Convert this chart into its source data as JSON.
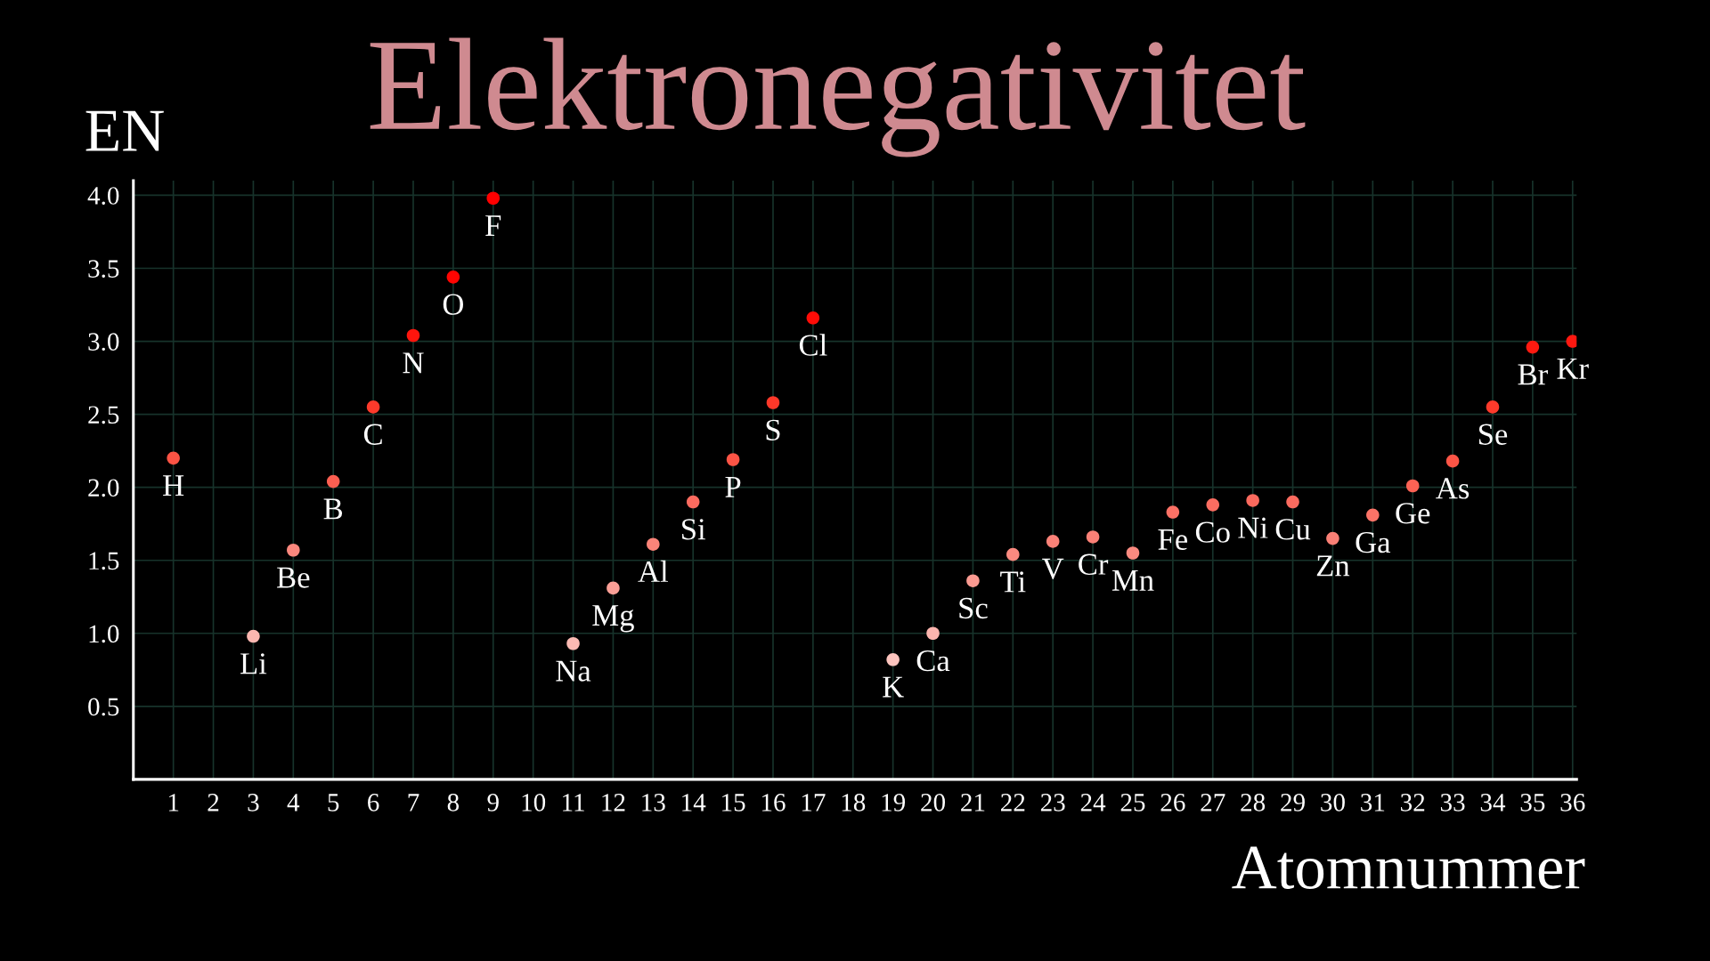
{
  "chart_data": {
    "type": "scatter",
    "title": "Elektronegativitet",
    "xlabel": "Atomnummer",
    "ylabel": "EN",
    "x": [
      1,
      3,
      4,
      5,
      6,
      7,
      8,
      9,
      11,
      12,
      13,
      14,
      15,
      16,
      17,
      19,
      20,
      21,
      22,
      23,
      24,
      25,
      26,
      27,
      28,
      29,
      30,
      31,
      32,
      33,
      34,
      35,
      36
    ],
    "values": [
      2.2,
      0.98,
      1.57,
      2.04,
      2.55,
      3.04,
      3.44,
      3.98,
      0.93,
      1.31,
      1.61,
      1.9,
      2.19,
      2.58,
      3.16,
      0.82,
      1.0,
      1.36,
      1.54,
      1.63,
      1.66,
      1.55,
      1.83,
      1.88,
      1.91,
      1.9,
      1.65,
      1.81,
      2.01,
      2.18,
      2.55,
      2.96,
      3.0
    ],
    "colors": [
      "#fc5344",
      "#fbb7b0",
      "#fa877d",
      "#fc5f51",
      "#fd3a2b",
      "#fe150d",
      "#ff0502",
      "#ff0000",
      "#fbbab3",
      "#fa9f96",
      "#fa8479",
      "#fb6b5f",
      "#fc5445",
      "#fd3829",
      "#ff0c07",
      "#fcc4be",
      "#fbb5ae",
      "#fa9b92",
      "#fa8a80",
      "#fa8278",
      "#fa8076",
      "#fa8a80",
      "#fb7165",
      "#fb6d61",
      "#fb6a5e",
      "#fb6b5f",
      "#fa8076",
      "#fb7367",
      "#fc6254",
      "#fc5546",
      "#fd3a2b",
      "#fe1a10",
      "#fe1810"
    ],
    "marker": "circle",
    "grid": true,
    "xlim": [
      0,
      36.1
    ],
    "xticks": [
      1,
      2,
      3,
      4,
      5,
      6,
      7,
      8,
      9,
      10,
      11,
      12,
      13,
      14,
      15,
      16,
      17,
      18,
      19,
      20,
      21,
      22,
      23,
      24,
      25,
      26,
      27,
      28,
      29,
      30,
      31,
      32,
      33,
      34,
      35,
      36
    ],
    "ylim": [
      0,
      4.1
    ],
    "yticks": [
      0.5,
      {
        "value": 1,
        "label": "1.0"
      },
      1.5,
      {
        "value": 2,
        "label": "2.0"
      },
      2.5,
      {
        "value": 3,
        "label": "3.0"
      },
      3.5,
      {
        "value": 4,
        "label": "4.0"
      }
    ],
    "annotations": [
      {
        "text": "H",
        "x": 1,
        "y": 2.2
      },
      {
        "text": "Li",
        "x": 3,
        "y": 0.98
      },
      {
        "text": "Be",
        "x": 4,
        "y": 1.57
      },
      {
        "text": "B",
        "x": 5,
        "y": 2.04
      },
      {
        "text": "C",
        "x": 6,
        "y": 2.55
      },
      {
        "text": "N",
        "x": 7,
        "y": 3.04
      },
      {
        "text": "O",
        "x": 8,
        "y": 3.44
      },
      {
        "text": "F",
        "x": 9,
        "y": 3.98
      },
      {
        "text": "Na",
        "x": 11,
        "y": 0.93
      },
      {
        "text": "Mg",
        "x": 12,
        "y": 1.31
      },
      {
        "text": "Al",
        "x": 13,
        "y": 1.61
      },
      {
        "text": "Si",
        "x": 14,
        "y": 1.9
      },
      {
        "text": "P",
        "x": 15,
        "y": 2.19
      },
      {
        "text": "S",
        "x": 16,
        "y": 2.58
      },
      {
        "text": "Cl",
        "x": 17,
        "y": 3.16
      },
      {
        "text": "K",
        "x": 19,
        "y": 0.82
      },
      {
        "text": "Ca",
        "x": 20,
        "y": 1.0
      },
      {
        "text": "Sc",
        "x": 21,
        "y": 1.36
      },
      {
        "text": "Ti",
        "x": 22,
        "y": 1.54
      },
      {
        "text": "V",
        "x": 23,
        "y": 1.63
      },
      {
        "text": "Cr",
        "x": 24,
        "y": 1.66
      },
      {
        "text": "Mn",
        "x": 25,
        "y": 1.55
      },
      {
        "text": "Fe",
        "x": 26,
        "y": 1.83
      },
      {
        "text": "Co",
        "x": 27,
        "y": 1.88
      },
      {
        "text": "Ni",
        "x": 28,
        "y": 1.91
      },
      {
        "text": "Cu",
        "x": 29,
        "y": 1.9
      },
      {
        "text": "Zn",
        "x": 30,
        "y": 1.65
      },
      {
        "text": "Ga",
        "x": 31,
        "y": 1.81
      },
      {
        "text": "Ge",
        "x": 32,
        "y": 2.01
      },
      {
        "text": "As",
        "x": 33,
        "y": 2.18
      },
      {
        "text": "Se",
        "x": 34,
        "y": 2.55
      },
      {
        "text": "Br",
        "x": 35,
        "y": 2.96
      },
      {
        "text": "Kr",
        "x": 36,
        "y": 3.0
      }
    ]
  }
}
